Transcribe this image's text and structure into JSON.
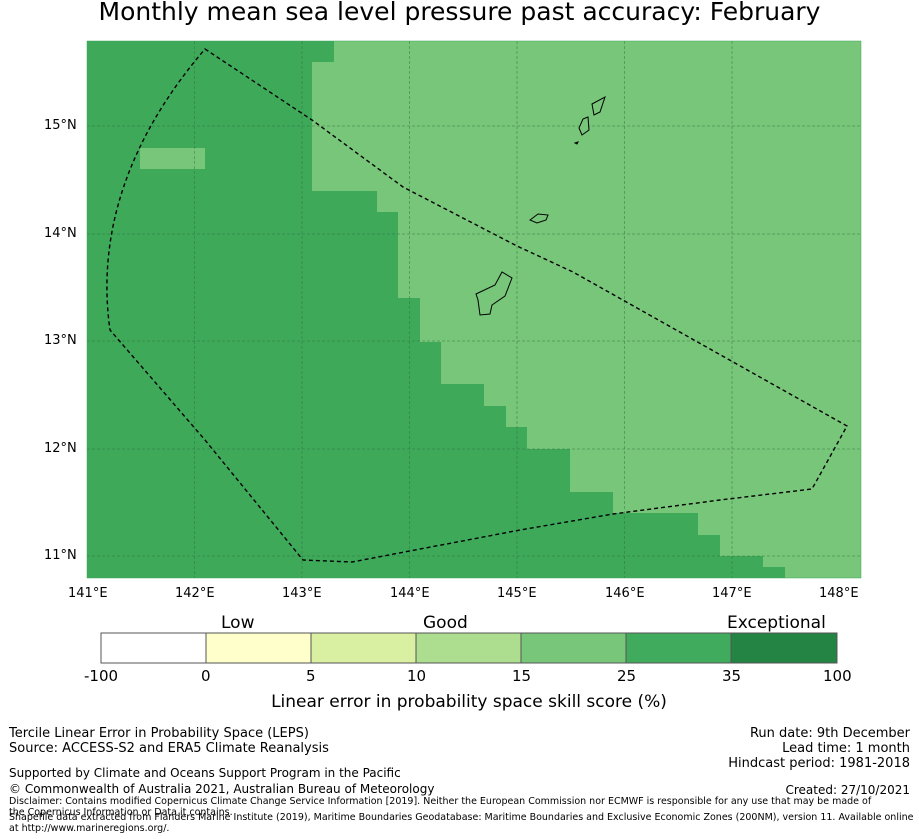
{
  "title": "Monthly mean sea level pressure past accuracy: February",
  "map": {
    "lat_labels": [
      "15°N",
      "14°N",
      "13°N",
      "12°N",
      "11°N"
    ],
    "lon_labels": [
      "141°E",
      "142°E",
      "143°E",
      "144°E",
      "145°E",
      "146°E",
      "147°E",
      "148°E"
    ],
    "colors": {
      "dark_green": "#3fa95a",
      "medium_green": "#78c679",
      "boundary": "#000000",
      "grid": "#2a6b38"
    }
  },
  "legend": {
    "categories": [
      "Low",
      "Good",
      "Exceptional"
    ],
    "ticks": [
      "-100",
      "0",
      "5",
      "10",
      "15",
      "25",
      "35",
      "100"
    ],
    "colors": [
      "#ffffff",
      "#ffffcc",
      "#d9f0a3",
      "#addd8e",
      "#78c679",
      "#41ab5d",
      "#238443"
    ],
    "label": "Linear error in probability space skill score (%)"
  },
  "info": {
    "method": "Tercile Linear Error in Probability Space (LEPS)",
    "source": "Source: ACCESS-S2 and ERA5 Climate Reanalysis",
    "support": "Supported by Climate and Oceans Support Program in the Pacific",
    "copyright": "© Commonwealth of Australia 2021, Australian Bureau of Meteorology",
    "disclaimer": "Disclaimer: Contains modified Copernicus Climate Change Service Information [2019]. Neither the European Commission nor ECMWF is responsible for any use that may be made of the Copernicus Information or Data it contains.",
    "shapefile": "Shapefile data extracted from Flanders Marine Institute (2019), Maritime Boundaries Geodatabase: Maritime Boundaries and Exclusive Economic Zones (200NM), version 11. Available online at http://www.marineregions.org/.",
    "run_date": "Run date: 9th December",
    "lead_time": "Lead time: 1 month",
    "hindcast": "Hindcast period: 1981-2018",
    "created": "Created: 27/10/2021"
  }
}
